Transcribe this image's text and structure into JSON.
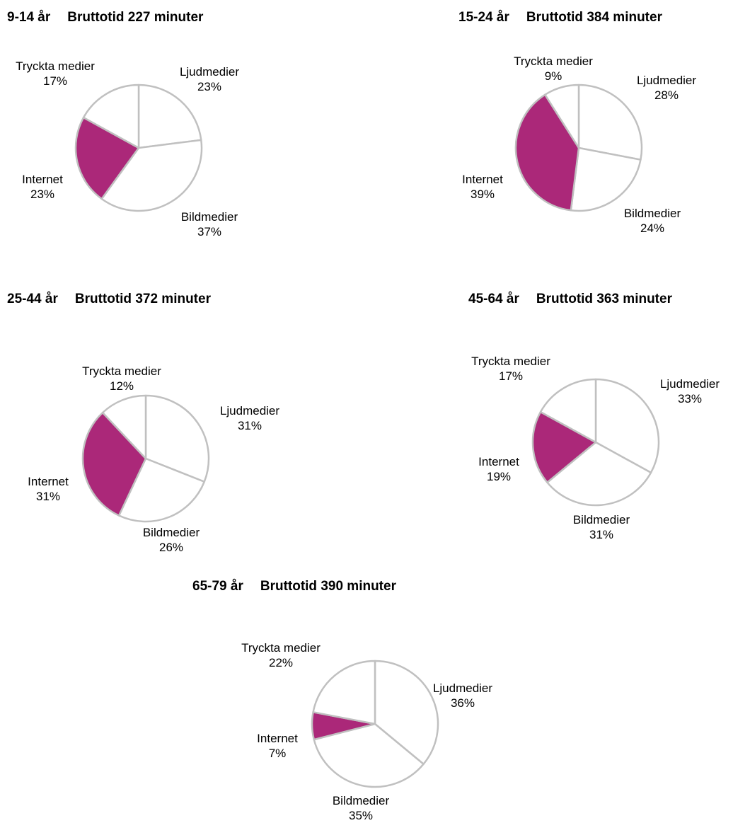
{
  "colors": {
    "internet": "#ab2879",
    "slice": "#ffffff",
    "stroke": "#c0c0c0"
  },
  "chart_data": [
    {
      "type": "pie",
      "title_age": "9-14 år",
      "title_total": "Bruttotid 227 minuter",
      "slices": [
        {
          "label": "Ljudmedier",
          "value": 23,
          "pct": "23%"
        },
        {
          "label": "Bildmedier",
          "value": 37,
          "pct": "37%"
        },
        {
          "label": "Internet",
          "value": 23,
          "pct": "23%"
        },
        {
          "label": "Tryckta medier",
          "value": 17,
          "pct": "17%"
        }
      ]
    },
    {
      "type": "pie",
      "title_age": "15-24 år",
      "title_total": "Bruttotid 384 minuter",
      "slices": [
        {
          "label": "Ljudmedier",
          "value": 28,
          "pct": "28%"
        },
        {
          "label": "Bildmedier",
          "value": 24,
          "pct": "24%"
        },
        {
          "label": "Internet",
          "value": 39,
          "pct": "39%"
        },
        {
          "label": "Tryckta medier",
          "value": 9,
          "pct": "9%"
        }
      ]
    },
    {
      "type": "pie",
      "title_age": "25-44 år",
      "title_total": "Bruttotid 372 minuter",
      "slices": [
        {
          "label": "Ljudmedier",
          "value": 31,
          "pct": "31%"
        },
        {
          "label": "Bildmedier",
          "value": 26,
          "pct": "26%"
        },
        {
          "label": "Internet",
          "value": 31,
          "pct": "31%"
        },
        {
          "label": "Tryckta medier",
          "value": 12,
          "pct": "12%"
        }
      ]
    },
    {
      "type": "pie",
      "title_age": "45-64 år",
      "title_total": "Bruttotid 363 minuter",
      "slices": [
        {
          "label": "Ljudmedier",
          "value": 33,
          "pct": "33%"
        },
        {
          "label": "Bildmedier",
          "value": 31,
          "pct": "31%"
        },
        {
          "label": "Internet",
          "value": 19,
          "pct": "19%"
        },
        {
          "label": "Tryckta medier",
          "value": 17,
          "pct": "17%"
        }
      ]
    },
    {
      "type": "pie",
      "title_age": "65-79 år",
      "title_total": "Bruttotid 390 minuter",
      "slices": [
        {
          "label": "Ljudmedier",
          "value": 36,
          "pct": "36%"
        },
        {
          "label": "Bildmedier",
          "value": 35,
          "pct": "35%"
        },
        {
          "label": "Internet",
          "value": 7,
          "pct": "7%"
        },
        {
          "label": "Tryckta medier",
          "value": 22,
          "pct": "22%"
        }
      ]
    }
  ]
}
